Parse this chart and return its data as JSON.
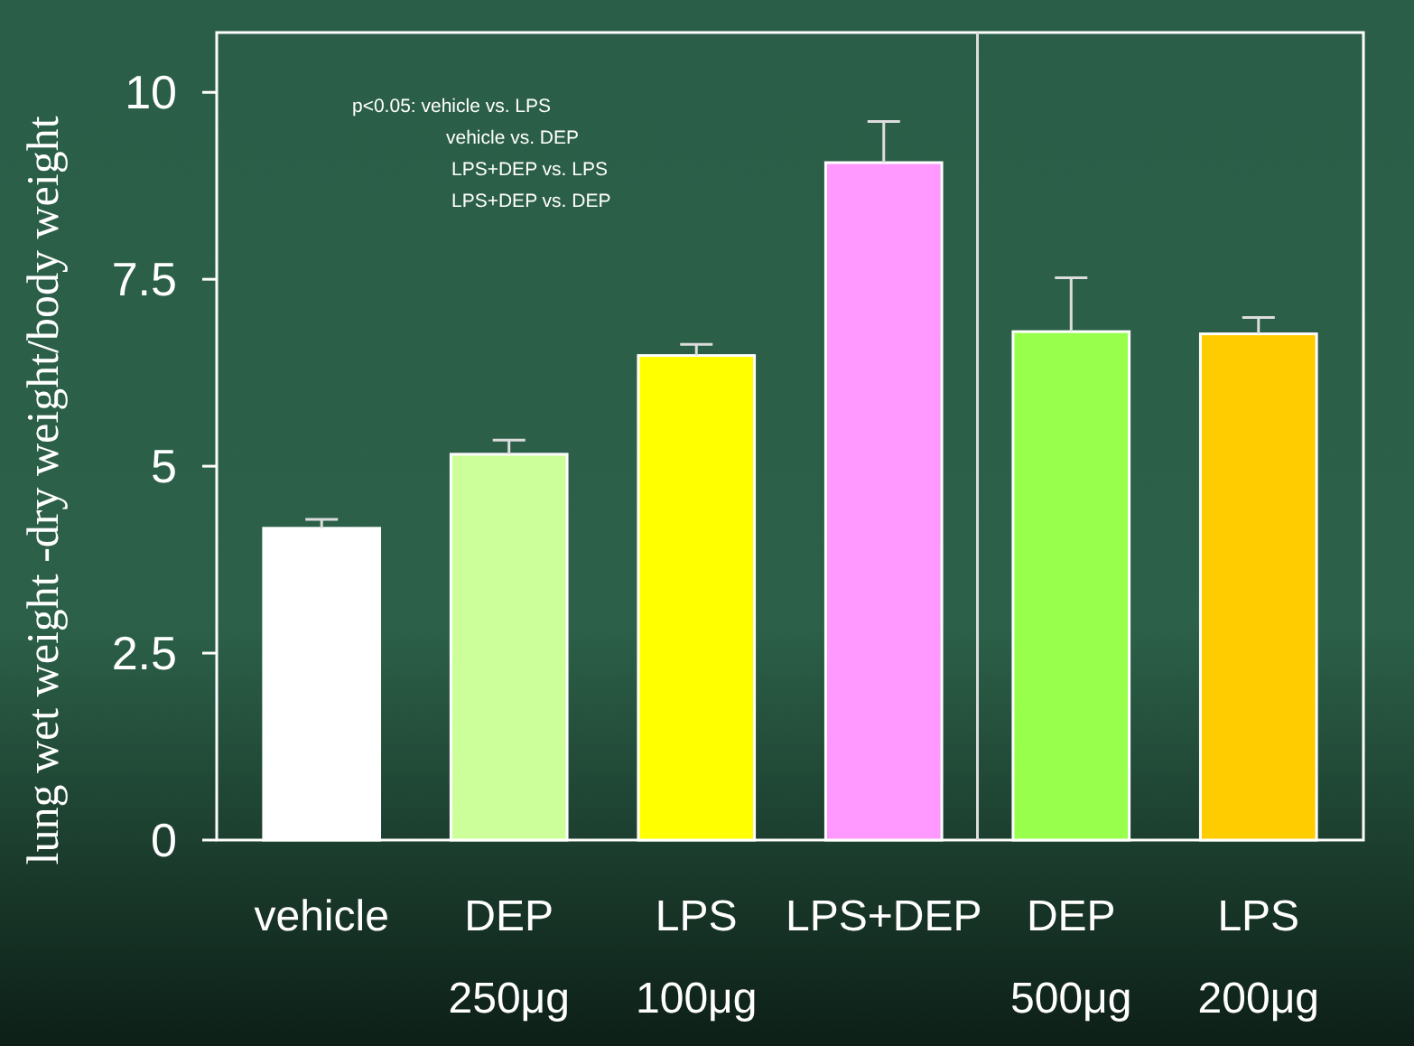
{
  "chart_data": {
    "type": "bar",
    "ylabel": "lung wet weight -dry weight/body weight",
    "categories": [
      "vehicle",
      "DEP\n250μg",
      "LPS\n100μg",
      "LPS+DEP",
      "DEP\n500μg",
      "LPS\n200μg"
    ],
    "values": [
      4.17,
      5.16,
      6.48,
      9.06,
      6.8,
      6.77
    ],
    "colors": [
      "#ffffff",
      "#ccff99",
      "#ffff00",
      "#ff99ff",
      "#99ff4d",
      "#ffcc00"
    ],
    "errors": [
      [
        4.17,
        4.29
      ],
      [
        5.16,
        5.35
      ],
      [
        6.48,
        6.63
      ],
      [
        9.06,
        9.61
      ],
      [
        6.8,
        7.52
      ],
      [
        6.77,
        6.99
      ]
    ],
    "ylim": [
      0,
      10.8
    ],
    "yticks": [
      0,
      2.5,
      5,
      7.5,
      10
    ],
    "annotations": [
      "p<0.05: vehicle vs. LPS\nvehicle vs. DEP\nLPS+DEP vs. LPS\nLPS+DEP vs. DEP"
    ]
  }
}
